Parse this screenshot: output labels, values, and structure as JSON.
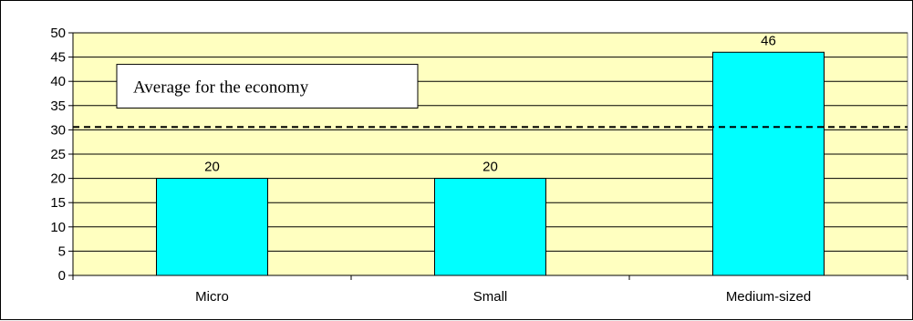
{
  "chart_data": {
    "type": "bar",
    "categories": [
      "Micro",
      "Small",
      "Medium-sized"
    ],
    "values": [
      20,
      20,
      46
    ],
    "data_labels": [
      "20",
      "20",
      "46"
    ],
    "title": "",
    "xlabel": "",
    "ylabel": "",
    "ylim": [
      0,
      50
    ],
    "yticks": [
      0,
      5,
      10,
      15,
      20,
      25,
      30,
      35,
      40,
      45,
      50
    ],
    "grid": true,
    "plot_background": "#ffffc0",
    "bar_color": "#00ffff",
    "reference_line": {
      "value": 30.6,
      "label": "Average for the economy",
      "style": "dashed",
      "color": "#000000"
    }
  }
}
